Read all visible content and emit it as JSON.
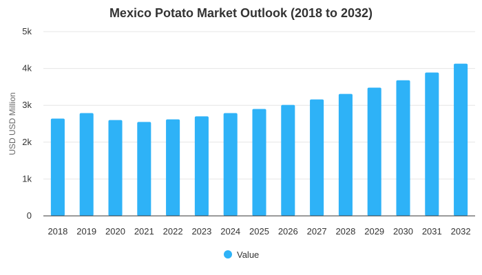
{
  "chart_data": {
    "type": "bar",
    "title": "Mexico Potato Market Outlook (2018 to 2032)",
    "xlabel": "",
    "ylabel": "USD USD Million",
    "categories": [
      "2018",
      "2019",
      "2020",
      "2021",
      "2022",
      "2023",
      "2024",
      "2025",
      "2026",
      "2027",
      "2028",
      "2029",
      "2030",
      "2031",
      "2032"
    ],
    "series": [
      {
        "name": "Value",
        "color": "#2eb2f7",
        "values": [
          2640,
          2790,
          2600,
          2550,
          2620,
          2700,
          2790,
          2900,
          3010,
          3160,
          3310,
          3480,
          3680,
          3890,
          4130
        ]
      }
    ],
    "ylim": [
      0,
      5000
    ],
    "yticks": [
      {
        "value": 0,
        "label": "0"
      },
      {
        "value": 1000,
        "label": "1k"
      },
      {
        "value": 2000,
        "label": "2k"
      },
      {
        "value": 3000,
        "label": "3k"
      },
      {
        "value": 4000,
        "label": "4k"
      },
      {
        "value": 5000,
        "label": "5k"
      }
    ],
    "grid": true,
    "legend_position": "bottom"
  },
  "colors": {
    "bar": "#2eb2f7",
    "grid": "#e6e6e6",
    "text": "#333333"
  }
}
